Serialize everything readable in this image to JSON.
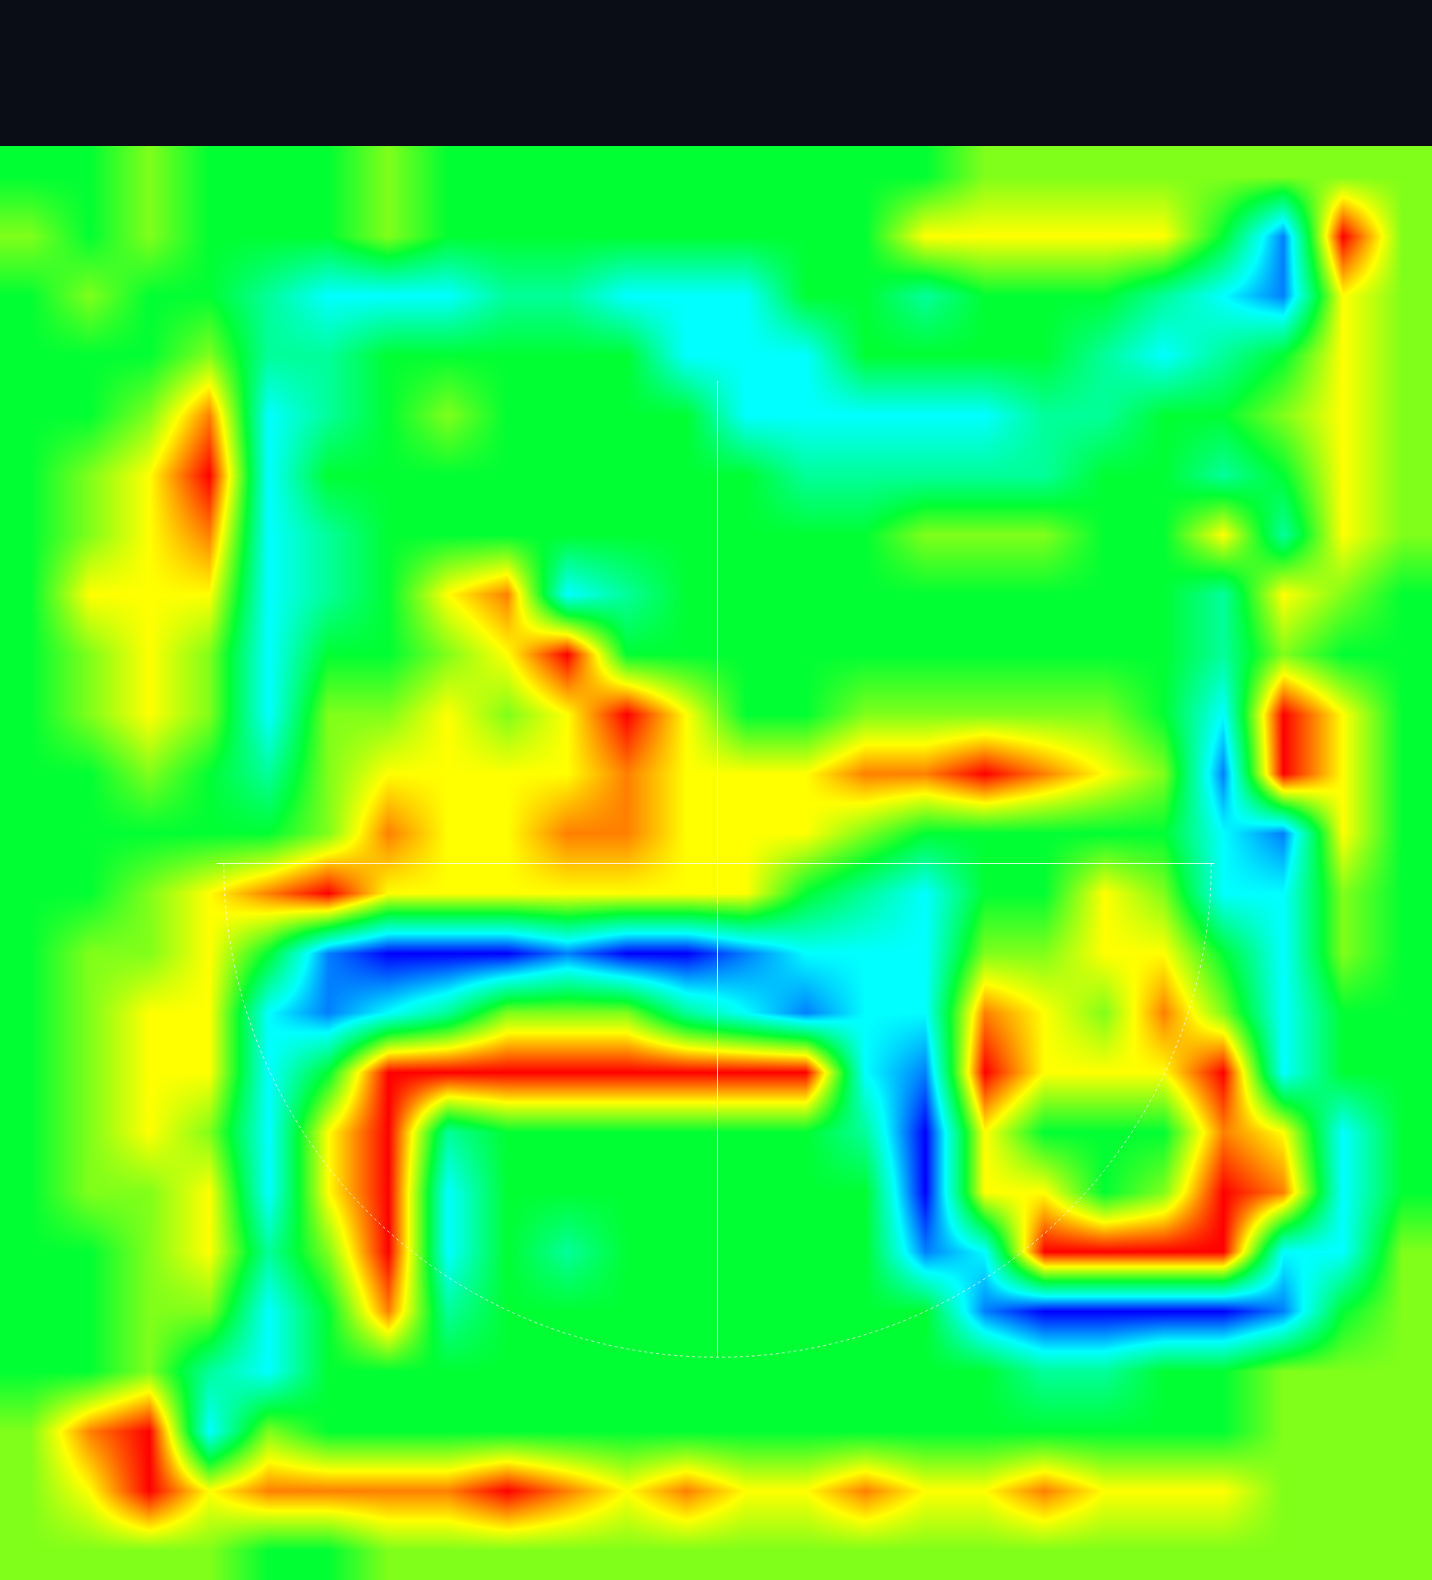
{
  "chart_data": {
    "type": "heatmap",
    "tick_labels": false,
    "zlim": [
      0,
      4
    ],
    "z": [
      [
        2,
        2,
        2.5,
        2,
        2,
        2,
        2.5,
        2,
        2,
        2,
        2,
        2,
        2,
        2,
        2,
        2,
        2.5,
        2.5,
        2.5,
        2.5,
        2.5,
        2.5,
        2.5,
        2.5
      ],
      [
        2.5,
        2,
        2.5,
        2,
        2,
        2,
        2.5,
        2,
        2,
        2,
        2,
        2,
        2,
        2,
        2,
        3,
        3,
        3,
        3,
        3,
        2,
        0.5,
        4,
        2.5
      ],
      [
        2,
        2.5,
        2,
        2,
        1.5,
        1,
        1,
        1,
        1.5,
        1.5,
        1,
        1,
        1,
        2,
        2,
        1.5,
        2,
        2,
        2,
        1.5,
        1,
        0.5,
        3,
        2.5
      ],
      [
        2,
        2,
        2,
        2.5,
        1.5,
        1.5,
        2,
        2,
        2,
        2,
        2,
        1,
        1,
        1,
        2,
        2,
        2,
        2,
        1.5,
        1,
        1.5,
        2,
        3,
        2.5
      ],
      [
        2,
        2,
        2.5,
        3.5,
        1,
        1.5,
        2,
        2.5,
        2,
        2,
        2,
        2,
        1,
        1,
        1,
        1,
        1,
        1.5,
        1.5,
        2,
        2,
        2.5,
        3,
        2.5
      ],
      [
        2,
        2.5,
        3,
        4,
        1,
        2,
        2,
        2,
        2,
        2,
        2,
        2,
        2,
        1.5,
        1.5,
        1.5,
        1.5,
        1.5,
        2,
        2,
        1.5,
        2,
        3,
        2.5
      ],
      [
        2,
        2.5,
        3,
        3.5,
        1,
        1.5,
        2,
        2,
        2,
        2,
        2,
        2,
        2,
        2,
        2,
        2.5,
        2.5,
        2.5,
        2,
        2,
        3,
        1.5,
        3,
        2.5
      ],
      [
        2,
        3,
        3,
        3,
        1,
        1.5,
        2,
        3,
        3.5,
        1,
        1.5,
        2,
        2,
        2,
        2,
        2,
        2,
        2,
        2,
        2,
        1.5,
        3,
        2.5,
        2
      ],
      [
        2,
        2.5,
        3,
        2.5,
        1,
        2,
        2,
        2.5,
        3,
        4,
        2,
        2,
        2,
        2,
        2,
        2,
        2,
        2,
        2,
        2,
        1.5,
        2.5,
        2,
        2
      ],
      [
        2,
        2.5,
        3,
        2.5,
        1,
        2.5,
        2.5,
        3,
        2.5,
        3,
        4,
        3,
        2,
        2,
        2.5,
        2.5,
        2.5,
        2.5,
        2.5,
        2,
        1,
        4,
        3,
        2
      ],
      [
        2,
        2,
        2.5,
        2,
        1.5,
        2.5,
        3,
        3,
        3,
        3,
        3.5,
        3,
        3,
        3,
        3.5,
        3.5,
        4,
        3.5,
        3,
        2.5,
        0.5,
        4,
        3,
        2
      ],
      [
        2,
        2,
        2,
        2,
        2,
        2.5,
        3.5,
        3,
        3,
        3.5,
        3.5,
        3,
        3,
        3,
        2.5,
        2,
        2,
        2,
        2,
        2,
        1,
        0.5,
        3,
        2
      ],
      [
        2,
        2,
        2.5,
        3,
        3.5,
        4,
        3,
        3,
        3,
        3,
        3,
        3,
        3,
        2,
        1.5,
        1,
        2,
        2,
        3,
        2.5,
        1,
        1,
        2.5,
        2
      ],
      [
        2,
        2.5,
        2.5,
        3,
        2,
        0.5,
        0,
        0,
        0,
        0.5,
        0,
        0,
        0.5,
        1,
        1,
        1,
        2.5,
        2.5,
        3,
        3,
        2,
        1,
        2.5,
        2
      ],
      [
        2,
        2.5,
        3,
        3,
        1,
        0.5,
        1,
        1.5,
        2.5,
        2.5,
        2.5,
        1.5,
        1,
        0.5,
        1,
        1,
        3.5,
        3,
        2.5,
        3.5,
        2.5,
        1,
        2,
        2
      ],
      [
        2,
        2.5,
        3,
        3,
        1,
        2,
        4,
        4,
        4,
        4,
        4,
        4,
        4,
        4,
        1,
        0.5,
        4,
        3,
        3,
        3,
        4,
        1,
        2,
        2
      ],
      [
        2,
        2.5,
        3,
        2.5,
        1,
        3,
        4,
        1.5,
        2,
        2,
        2,
        2,
        2,
        2,
        1.5,
        0,
        3,
        2,
        2,
        2,
        3.5,
        3,
        1,
        2
      ],
      [
        2,
        2.5,
        2.5,
        3,
        1,
        3,
        4,
        1,
        2,
        2,
        2,
        2,
        2,
        2,
        2,
        0,
        3,
        3,
        2,
        2.5,
        4,
        3.5,
        1,
        2
      ],
      [
        2,
        2,
        2.5,
        3,
        1.5,
        2.5,
        4,
        1,
        2,
        1.5,
        2,
        2,
        2,
        2,
        2,
        0.5,
        1,
        4,
        4,
        4,
        4,
        1,
        1,
        2.5
      ],
      [
        2,
        2,
        2.5,
        2.5,
        1,
        2,
        3.5,
        1.5,
        2,
        2,
        2,
        2,
        2,
        2,
        2,
        2,
        0.5,
        0,
        0,
        0,
        0,
        0.5,
        2,
        2.5
      ],
      [
        2,
        2,
        2.5,
        1.5,
        1,
        2,
        2,
        2,
        2,
        2,
        2,
        2,
        2,
        2,
        2,
        2,
        2,
        1.5,
        1.5,
        2,
        2,
        2.5,
        2.5,
        2.5
      ],
      [
        2.5,
        3.5,
        4,
        1,
        2.5,
        2,
        2,
        2,
        2,
        2,
        2,
        2,
        2,
        2,
        2,
        2,
        2,
        2,
        2,
        2,
        2,
        2.5,
        2.5,
        2.5
      ],
      [
        2.5,
        3,
        4,
        3,
        3.5,
        3.5,
        3.5,
        3.5,
        4,
        3.5,
        3,
        3.5,
        3,
        3,
        3.5,
        3,
        3,
        3.5,
        3,
        3,
        3,
        2.5,
        2.5,
        2.5
      ],
      [
        2.5,
        2.5,
        2.5,
        2.5,
        2,
        2,
        2.5,
        2.5,
        2.5,
        2.5,
        2.5,
        2.5,
        2.5,
        2.5,
        2.5,
        2.5,
        2.5,
        2.5,
        2.5,
        2.5,
        2.5,
        2.5,
        2.5,
        2.5
      ]
    ]
  }
}
